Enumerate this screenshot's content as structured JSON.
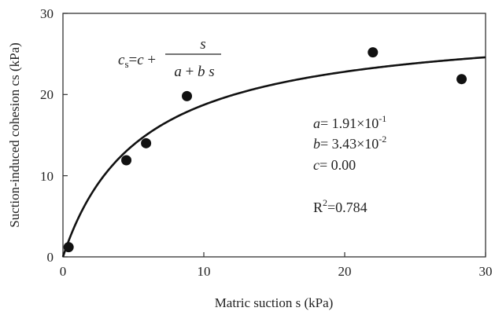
{
  "chart_data": {
    "type": "scatter",
    "xlabel": "Matric suction s (kPa)",
    "ylabel": "Suction-induced cohesion cs (kPa)",
    "xlim": [
      0,
      30
    ],
    "ylim": [
      0,
      30
    ],
    "xticks": [
      "0",
      "10",
      "20",
      "30"
    ],
    "yticks": [
      "0",
      "10",
      "20",
      "30"
    ],
    "grid": false,
    "points": {
      "x": [
        0.4,
        4.5,
        5.9,
        8.8,
        22.0,
        28.3
      ],
      "y": [
        1.2,
        11.9,
        14.0,
        19.8,
        25.2,
        21.9
      ]
    },
    "fit": {
      "equation": "cs = c + s / (a + b s)",
      "a": 0.191,
      "b": 0.0343,
      "c": 0.0
    },
    "annotations": {
      "a_text": "= 1.91×10",
      "a_exp": "-1",
      "b_text": "= 3.43×10",
      "b_exp": "-2",
      "c_text": "= 0.00",
      "r2_text": "=0.784"
    }
  }
}
